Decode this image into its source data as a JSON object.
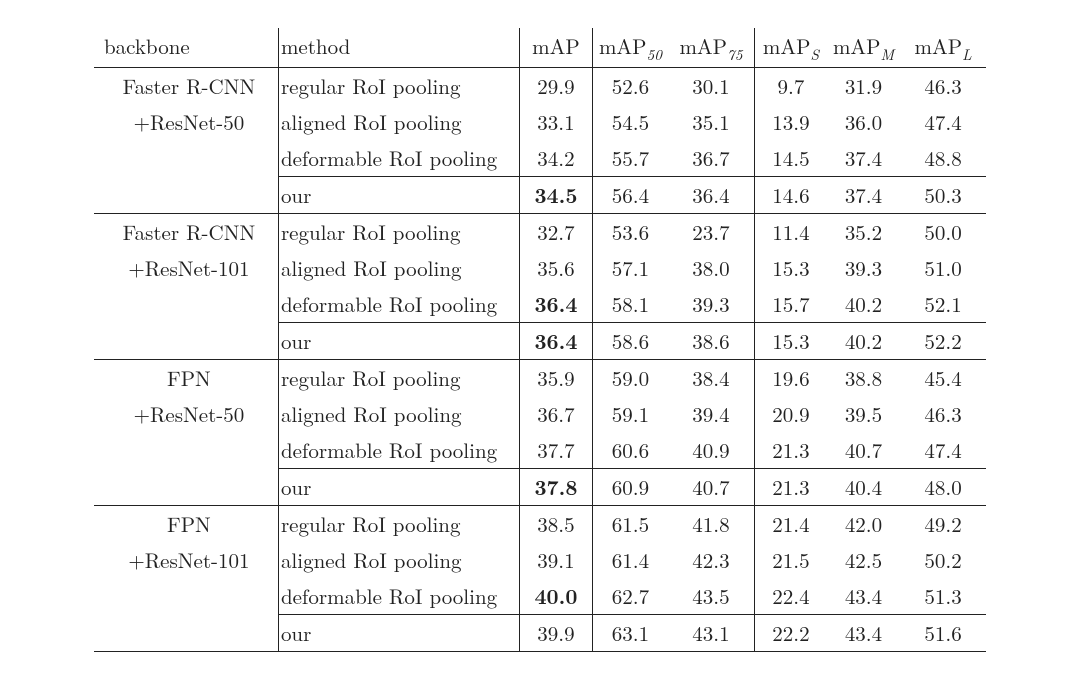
{
  "columns": {
    "backbone": "backbone",
    "method": "method",
    "map": "mAP",
    "map50_prefix": "mAP",
    "map50_sub": "50",
    "map75_prefix": "mAP",
    "map75_sub": "75",
    "maps_prefix": "mAP",
    "maps_sub": "S",
    "mapm_prefix": "mAP",
    "mapm_sub": "M",
    "mapl_prefix": "mAP",
    "mapl_sub": "L"
  },
  "bb": {
    "g0a": "Faster R-CNN",
    "g0b": "+ResNet-50",
    "g1a": "Faster R-CNN",
    "g1b": "+ResNet-101",
    "g2a": "FPN",
    "g2b": "+ResNet-50",
    "g3a": "FPN",
    "g3b": "+ResNet-101"
  },
  "m": {
    "reg": "regular RoI pooling",
    "ali": "aligned RoI pooling",
    "def": "deformable RoI pooling",
    "our": "our"
  },
  "v": {
    "r0": {
      "map": "29.9",
      "m50": "52.6",
      "m75": "30.1",
      "ms": "9.7",
      "mm": "31.9",
      "ml": "46.3"
    },
    "r1": {
      "map": "33.1",
      "m50": "54.5",
      "m75": "35.1",
      "ms": "13.9",
      "mm": "36.0",
      "ml": "47.4"
    },
    "r2": {
      "map": "34.2",
      "m50": "55.7",
      "m75": "36.7",
      "ms": "14.5",
      "mm": "37.4",
      "ml": "48.8"
    },
    "r3": {
      "map": "34.5",
      "m50": "56.4",
      "m75": "36.4",
      "ms": "14.6",
      "mm": "37.4",
      "ml": "50.3"
    },
    "r4": {
      "map": "32.7",
      "m50": "53.6",
      "m75": "23.7",
      "ms": "11.4",
      "mm": "35.2",
      "ml": "50.0"
    },
    "r5": {
      "map": "35.6",
      "m50": "57.1",
      "m75": "38.0",
      "ms": "15.3",
      "mm": "39.3",
      "ml": "51.0"
    },
    "r6": {
      "map": "36.4",
      "m50": "58.1",
      "m75": "39.3",
      "ms": "15.7",
      "mm": "40.2",
      "ml": "52.1"
    },
    "r7": {
      "map": "36.4",
      "m50": "58.6",
      "m75": "38.6",
      "ms": "15.3",
      "mm": "40.2",
      "ml": "52.2"
    },
    "r8": {
      "map": "35.9",
      "m50": "59.0",
      "m75": "38.4",
      "ms": "19.6",
      "mm": "38.8",
      "ml": "45.4"
    },
    "r9": {
      "map": "36.7",
      "m50": "59.1",
      "m75": "39.4",
      "ms": "20.9",
      "mm": "39.5",
      "ml": "46.3"
    },
    "r10": {
      "map": "37.7",
      "m50": "60.6",
      "m75": "40.9",
      "ms": "21.3",
      "mm": "40.7",
      "ml": "47.4"
    },
    "r11": {
      "map": "37.8",
      "m50": "60.9",
      "m75": "40.7",
      "ms": "21.3",
      "mm": "40.4",
      "ml": "48.0"
    },
    "r12": {
      "map": "38.5",
      "m50": "61.5",
      "m75": "41.8",
      "ms": "21.4",
      "mm": "42.0",
      "ml": "49.2"
    },
    "r13": {
      "map": "39.1",
      "m50": "61.4",
      "m75": "42.3",
      "ms": "21.5",
      "mm": "42.5",
      "ml": "50.2"
    },
    "r14": {
      "map": "40.0",
      "m50": "62.7",
      "m75": "43.5",
      "ms": "22.4",
      "mm": "43.4",
      "ml": "51.3"
    },
    "r15": {
      "map": "39.9",
      "m50": "63.1",
      "m75": "43.1",
      "ms": "22.2",
      "mm": "43.4",
      "ml": "51.6"
    }
  },
  "bold_map_rows": [
    "r3",
    "r6",
    "r7",
    "r11",
    "r14"
  ]
}
